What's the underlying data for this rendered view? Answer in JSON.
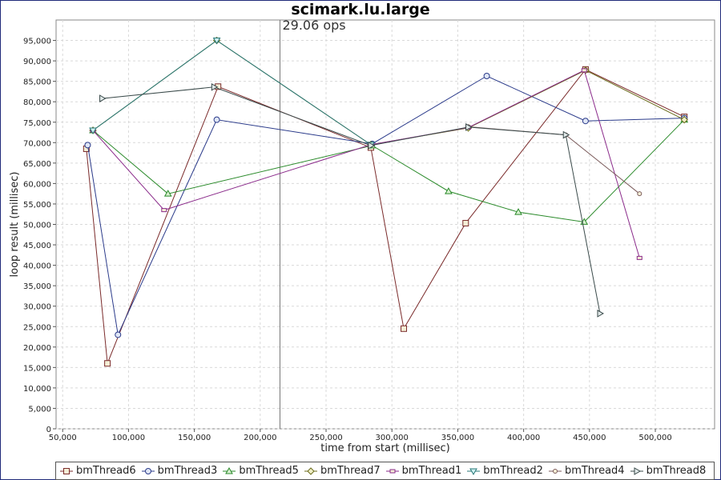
{
  "chart_data": {
    "type": "line",
    "title": "scimark.lu.large",
    "annotation": "29.06 ops",
    "annotation_x": 215000,
    "xlabel": "time from start (millisec)",
    "ylabel": "loop result (millisec)",
    "xlim": [
      45000,
      545000
    ],
    "ylim": [
      0,
      100000
    ],
    "x_ticks": [
      50000,
      100000,
      150000,
      200000,
      250000,
      300000,
      350000,
      400000,
      450000,
      500000
    ],
    "x_tick_labels": [
      "50,000",
      "100,000",
      "150,000",
      "200,000",
      "250,000",
      "300,000",
      "350,000",
      "400,000",
      "450,000",
      "500,000"
    ],
    "y_ticks": [
      0,
      5000,
      10000,
      15000,
      20000,
      25000,
      30000,
      35000,
      40000,
      45000,
      50000,
      55000,
      60000,
      65000,
      70000,
      75000,
      80000,
      85000,
      90000,
      95000
    ],
    "y_tick_labels": [
      "0",
      "5,000",
      "10,000",
      "15,000",
      "20,000",
      "25,000",
      "30,000",
      "35,000",
      "40,000",
      "45,000",
      "50,000",
      "55,000",
      "60,000",
      "65,000",
      "70,000",
      "75,000",
      "80,000",
      "85,000",
      "90,000",
      "95,000"
    ],
    "grid": true,
    "legend_position": "bottom",
    "series": [
      {
        "name": "bmThread6",
        "marker": "square",
        "color": "#7a2a2a",
        "points": [
          [
            68000,
            68500
          ],
          [
            84000,
            16000
          ],
          [
            168000,
            83700
          ],
          [
            284000,
            68800
          ],
          [
            309000,
            24500
          ],
          [
            356000,
            50300
          ],
          [
            447000,
            87900
          ],
          [
            522000,
            76300
          ]
        ]
      },
      {
        "name": "bmThread3",
        "marker": "circle",
        "color": "#2a3a8a",
        "points": [
          [
            69000,
            69400
          ],
          [
            92000,
            23000
          ],
          [
            167000,
            75600
          ],
          [
            285000,
            69700
          ],
          [
            372000,
            86300
          ],
          [
            447000,
            75300
          ],
          [
            522000,
            76000
          ]
        ]
      },
      {
        "name": "bmThread5",
        "marker": "triangle-up",
        "color": "#2a8a2a",
        "points": [
          [
            73000,
            73000
          ],
          [
            130000,
            57500
          ],
          [
            285000,
            69300
          ],
          [
            343000,
            58100
          ],
          [
            396000,
            53000
          ],
          [
            446000,
            50600
          ],
          [
            522000,
            75600
          ]
        ]
      },
      {
        "name": "bmThread7",
        "marker": "diamond",
        "color": "#6a6a1a",
        "points": [
          [
            73000,
            73000
          ],
          [
            167000,
            95000
          ],
          [
            284000,
            69500
          ],
          [
            358000,
            73600
          ],
          [
            447000,
            87700
          ],
          [
            522000,
            75600
          ]
        ]
      },
      {
        "name": "bmThread1",
        "marker": "square-small",
        "color": "#8a2a8a",
        "points": [
          [
            73000,
            73000
          ],
          [
            127000,
            53500
          ],
          [
            284000,
            69500
          ],
          [
            358000,
            73700
          ],
          [
            446000,
            87700
          ],
          [
            488000,
            41800
          ]
        ]
      },
      {
        "name": "bmThread2",
        "marker": "triangle-down",
        "color": "#2a7a7a",
        "points": [
          [
            73000,
            73000
          ],
          [
            167000,
            95000
          ],
          [
            284000,
            69500
          ]
        ]
      },
      {
        "name": "bmThread4",
        "marker": "circle-small",
        "color": "#7a5a5a",
        "points": [
          [
            358000,
            73900
          ],
          [
            432000,
            71900
          ],
          [
            488000,
            57500
          ]
        ]
      },
      {
        "name": "bmThread8",
        "marker": "triangle-right",
        "color": "#3a4a4a",
        "points": [
          [
            80000,
            80800
          ],
          [
            165000,
            83600
          ],
          [
            284000,
            69300
          ],
          [
            358000,
            73800
          ],
          [
            432000,
            71900
          ],
          [
            458000,
            28200
          ]
        ]
      }
    ]
  }
}
